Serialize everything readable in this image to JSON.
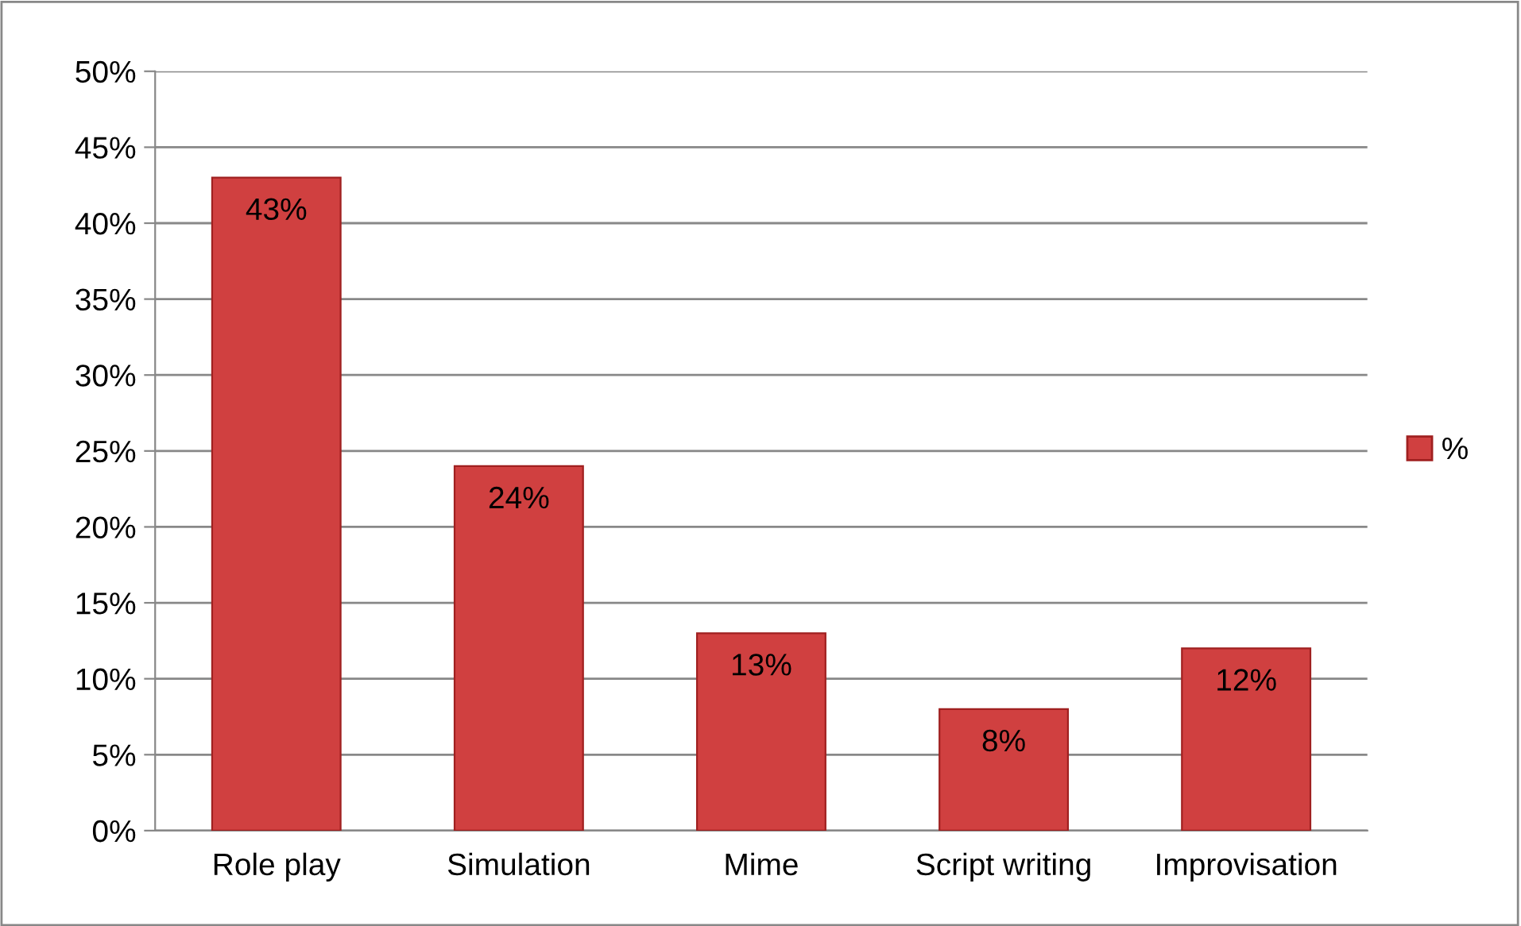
{
  "chart_data": {
    "type": "bar",
    "categories": [
      "Role play",
      "Simulation",
      "Mime",
      "Script writing",
      "Improvisation"
    ],
    "series": [
      {
        "name": "%",
        "color": "#d04040",
        "values": [
          43,
          24,
          13,
          8,
          12
        ],
        "value_labels": [
          "43%",
          "24%",
          "13%",
          "8%",
          "12%"
        ]
      }
    ],
    "ylim": [
      0,
      50
    ],
    "yticks": [
      {
        "value": 0,
        "label": "0%"
      },
      {
        "value": 5,
        "label": "5%"
      },
      {
        "value": 10,
        "label": "10%"
      },
      {
        "value": 15,
        "label": "15%"
      },
      {
        "value": 20,
        "label": "20%"
      },
      {
        "value": 25,
        "label": "25%"
      },
      {
        "value": 30,
        "label": "30%"
      },
      {
        "value": 35,
        "label": "35%"
      },
      {
        "value": 40,
        "label": "40%"
      },
      {
        "value": 45,
        "label": "45%"
      },
      {
        "value": 50,
        "label": "50%"
      }
    ],
    "grid": "y",
    "legend": "right"
  }
}
